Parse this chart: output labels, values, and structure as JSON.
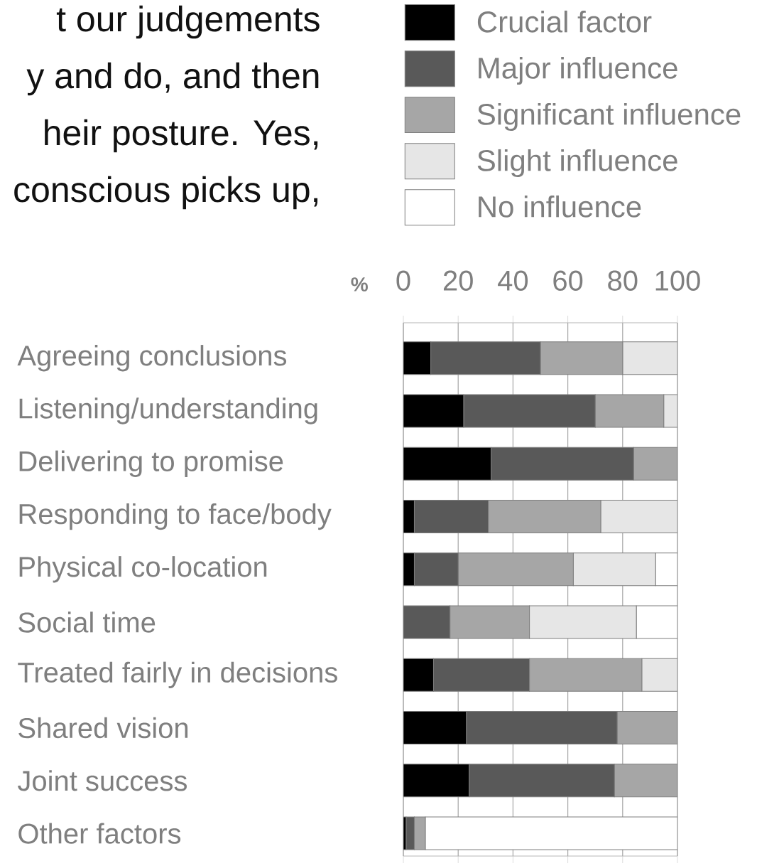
{
  "chart_data": {
    "type": "bar",
    "orientation": "horizontal",
    "stacked": true,
    "categories": [
      "Agreeing conclusions",
      "Listening/understanding",
      "Delivering to promise",
      "Responding to face/body",
      "Physical co-location",
      "Social time",
      "Treated fairly in decisions",
      "Shared vision",
      "Joint success",
      "Other factors"
    ],
    "series": [
      {
        "name": "Crucial factor",
        "color": "#000000",
        "values": [
          10,
          22,
          32,
          4,
          4,
          0,
          11,
          23,
          24,
          1
        ]
      },
      {
        "name": "Major influence",
        "color": "#595959",
        "values": [
          40,
          48,
          52,
          27,
          16,
          17,
          35,
          55,
          53,
          3
        ]
      },
      {
        "name": "Significant influence",
        "color": "#a6a6a6",
        "values": [
          30,
          25,
          16,
          41,
          42,
          29,
          41,
          22,
          23,
          4
        ]
      },
      {
        "name": "Slight influence",
        "color": "#e6e6e6",
        "values": [
          20,
          5,
          0,
          28,
          30,
          39,
          13,
          0,
          0,
          0
        ]
      },
      {
        "name": "No influence",
        "color": "#ffffff",
        "values": [
          0,
          0,
          0,
          0,
          8,
          15,
          0,
          0,
          0,
          92
        ]
      }
    ],
    "xlim": [
      0,
      100
    ],
    "xticks": [
      0,
      20,
      40,
      60,
      80,
      100
    ],
    "xlabel": "%",
    "grid": "x",
    "legend": "top",
    "annotations": [
      "t our judgements",
      "y and do, and then",
      "heir posture. Yes,",
      "conscious picks up,"
    ]
  }
}
